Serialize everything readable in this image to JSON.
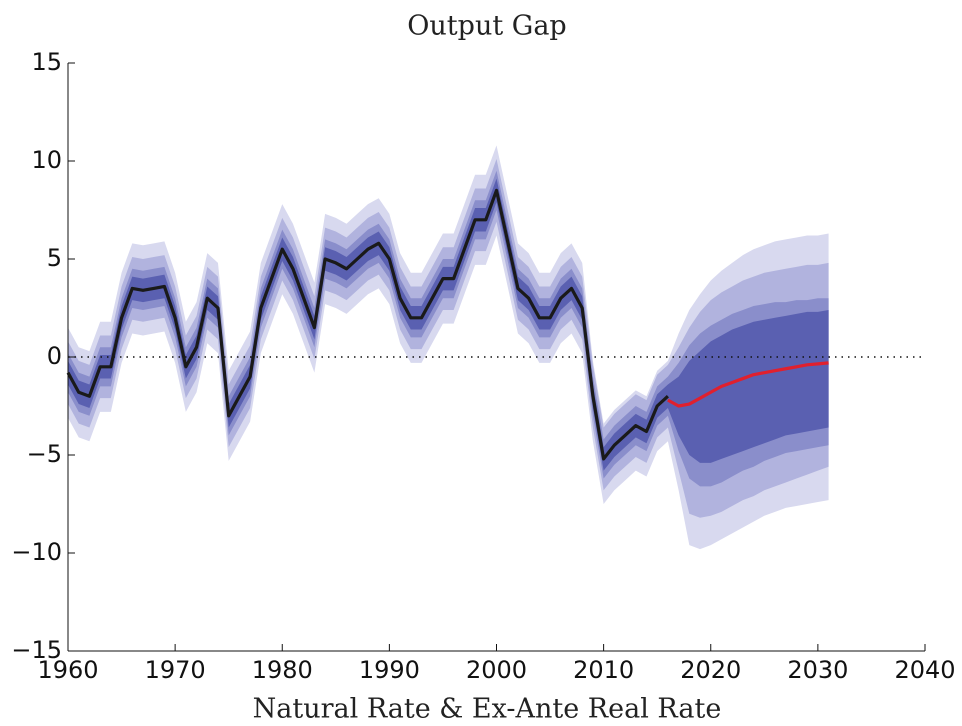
{
  "chart_data": {
    "type": "fan",
    "title": "Output Gap",
    "xlabel": "Natural Rate & Ex-Ante Real Rate",
    "x": [
      1960,
      1961,
      1962,
      1963,
      1964,
      1965,
      1966,
      1967,
      1968,
      1969,
      1970,
      1971,
      1972,
      1973,
      1974,
      1975,
      1976,
      1977,
      1978,
      1979,
      1980,
      1981,
      1982,
      1983,
      1984,
      1985,
      1986,
      1987,
      1988,
      1989,
      1990,
      1991,
      1992,
      1993,
      1994,
      1995,
      1996,
      1997,
      1998,
      1999,
      2000,
      2001,
      2002,
      2003,
      2004,
      2005,
      2006,
      2007,
      2008,
      2009,
      2010,
      2011,
      2012,
      2013,
      2014,
      2015,
      2016,
      2017,
      2018,
      2019,
      2020,
      2021,
      2022,
      2023,
      2024,
      2025,
      2026,
      2027,
      2028,
      2029,
      2030,
      2031
    ],
    "bands": [
      {
        "color": "#d8d9ef",
        "lower": [
          -3.1,
          -4.1,
          -4.3,
          -2.8,
          -2.8,
          -0.3,
          1.2,
          1.1,
          1.2,
          1.3,
          -0.3,
          -2.8,
          -1.8,
          0.7,
          0.2,
          -5.3,
          -4.3,
          -3.3,
          0.2,
          1.7,
          3.2,
          2.2,
          0.7,
          -0.8,
          2.7,
          2.5,
          2.2,
          2.7,
          3.2,
          3.5,
          2.7,
          0.7,
          -0.3,
          -0.3,
          0.7,
          1.7,
          1.7,
          3.2,
          4.7,
          4.7,
          6.2,
          3.7,
          1.2,
          0.7,
          -0.3,
          -0.3,
          0.7,
          1.2,
          0.2,
          -4.3,
          -7.5,
          -6.8,
          -6.3,
          -5.8,
          -6.1,
          -4.8,
          -4.3,
          -6.8,
          -9.6,
          -9.8,
          -9.6,
          -9.3,
          -9.0,
          -8.7,
          -8.4,
          -8.1,
          -7.9,
          -7.7,
          -7.6,
          -7.5,
          -7.4,
          -7.3
        ],
        "upper": [
          1.5,
          0.5,
          0.3,
          1.8,
          1.8,
          4.3,
          5.8,
          5.7,
          5.8,
          5.9,
          4.3,
          1.8,
          2.8,
          5.3,
          4.8,
          -0.7,
          0.3,
          1.3,
          4.8,
          6.3,
          7.8,
          6.8,
          5.3,
          3.8,
          7.3,
          7.1,
          6.8,
          7.3,
          7.8,
          8.1,
          7.3,
          5.3,
          4.3,
          4.3,
          5.3,
          6.3,
          6.3,
          7.8,
          9.3,
          9.3,
          10.8,
          8.3,
          5.8,
          5.3,
          4.3,
          4.3,
          5.3,
          5.8,
          4.8,
          -0.2,
          -3.4,
          -2.7,
          -2.2,
          -1.7,
          -2.0,
          -0.7,
          -0.2,
          1.2,
          2.4,
          3.2,
          3.9,
          4.4,
          4.8,
          5.2,
          5.5,
          5.7,
          5.9,
          6.0,
          6.1,
          6.2,
          6.2,
          6.3
        ]
      },
      {
        "color": "#b1b3de",
        "lower": [
          -2.4,
          -3.4,
          -3.6,
          -2.1,
          -2.1,
          0.4,
          1.9,
          1.8,
          1.9,
          2.0,
          0.4,
          -2.1,
          -1.1,
          1.4,
          0.9,
          -4.6,
          -3.6,
          -2.6,
          0.9,
          2.4,
          3.9,
          2.9,
          1.4,
          -0.1,
          3.4,
          3.2,
          2.9,
          3.4,
          3.9,
          4.2,
          3.4,
          1.4,
          0.4,
          0.4,
          1.4,
          2.4,
          2.4,
          3.9,
          5.4,
          5.4,
          6.9,
          4.4,
          1.9,
          1.4,
          0.4,
          0.4,
          1.4,
          1.9,
          0.9,
          -3.6,
          -6.8,
          -6.1,
          -5.6,
          -5.1,
          -5.4,
          -4.1,
          -3.6,
          -5.8,
          -8.0,
          -8.2,
          -8.1,
          -7.9,
          -7.6,
          -7.3,
          -7.1,
          -6.8,
          -6.6,
          -6.4,
          -6.2,
          -6.0,
          -5.8,
          -5.6
        ],
        "upper": [
          0.8,
          -0.2,
          -0.4,
          1.1,
          1.1,
          3.6,
          5.1,
          5.0,
          5.1,
          5.2,
          3.6,
          1.1,
          2.1,
          4.6,
          4.1,
          -1.4,
          -0.4,
          0.6,
          4.1,
          5.6,
          7.1,
          6.1,
          4.6,
          3.1,
          6.6,
          6.4,
          6.1,
          6.6,
          7.1,
          7.4,
          6.6,
          4.6,
          3.6,
          3.6,
          4.6,
          5.6,
          5.6,
          7.1,
          8.6,
          8.6,
          10.1,
          7.6,
          5.1,
          4.6,
          3.6,
          3.6,
          4.6,
          5.1,
          4.1,
          -0.4,
          -3.6,
          -2.9,
          -2.4,
          -1.9,
          -2.2,
          -0.9,
          -0.4,
          0.5,
          1.5,
          2.3,
          2.9,
          3.3,
          3.6,
          3.9,
          4.1,
          4.3,
          4.4,
          4.5,
          4.6,
          4.7,
          4.7,
          4.8
        ]
      },
      {
        "color": "#8a8ecb",
        "lower": [
          -1.8,
          -2.8,
          -3.0,
          -1.5,
          -1.5,
          1.0,
          2.5,
          2.4,
          2.5,
          2.6,
          1.0,
          -1.5,
          -0.5,
          2.0,
          1.5,
          -4.0,
          -3.0,
          -2.0,
          1.5,
          3.0,
          4.5,
          3.5,
          2.0,
          0.5,
          4.0,
          3.8,
          3.5,
          4.0,
          4.5,
          4.8,
          4.0,
          2.0,
          1.0,
          1.0,
          2.0,
          3.0,
          3.0,
          4.5,
          6.0,
          6.0,
          7.5,
          5.0,
          2.5,
          2.0,
          1.0,
          1.0,
          2.0,
          2.5,
          1.5,
          -3.0,
          -6.2,
          -5.5,
          -5.0,
          -4.5,
          -4.8,
          -3.5,
          -3.0,
          -4.8,
          -6.2,
          -6.6,
          -6.6,
          -6.4,
          -6.1,
          -5.8,
          -5.6,
          -5.3,
          -5.1,
          -4.9,
          -4.8,
          -4.7,
          -4.6,
          -4.5
        ],
        "upper": [
          0.2,
          -0.8,
          -1.0,
          0.5,
          0.5,
          3.0,
          4.5,
          4.4,
          4.5,
          4.6,
          3.0,
          0.5,
          1.5,
          4.0,
          3.5,
          -2.0,
          -1.0,
          0.0,
          3.5,
          5.0,
          6.5,
          5.5,
          4.0,
          2.5,
          6.0,
          5.8,
          5.5,
          6.0,
          6.5,
          6.8,
          6.0,
          4.0,
          3.0,
          3.0,
          4.0,
          5.0,
          5.0,
          6.5,
          8.0,
          8.0,
          9.5,
          7.0,
          4.5,
          4.0,
          3.0,
          3.0,
          4.0,
          4.5,
          3.5,
          -1.0,
          -4.2,
          -3.5,
          -3.0,
          -2.5,
          -2.8,
          -1.5,
          -1.0,
          -0.3,
          0.6,
          1.2,
          1.6,
          1.9,
          2.2,
          2.4,
          2.6,
          2.7,
          2.8,
          2.8,
          2.9,
          2.9,
          3.0,
          3.0
        ]
      },
      {
        "color": "#5a60b1",
        "lower": [
          -1.4,
          -2.4,
          -2.6,
          -1.1,
          -1.1,
          1.4,
          2.9,
          2.8,
          2.9,
          3.0,
          1.4,
          -1.1,
          -0.1,
          2.4,
          1.9,
          -3.6,
          -2.6,
          -1.6,
          1.9,
          3.4,
          4.9,
          3.9,
          2.4,
          0.9,
          4.4,
          4.2,
          3.9,
          4.4,
          4.9,
          5.2,
          4.4,
          2.4,
          1.4,
          1.4,
          2.4,
          3.4,
          3.4,
          4.9,
          6.4,
          6.4,
          7.9,
          5.4,
          2.9,
          2.4,
          1.4,
          1.4,
          2.4,
          2.9,
          1.9,
          -2.6,
          -5.8,
          -5.1,
          -4.6,
          -4.1,
          -4.4,
          -3.1,
          -2.6,
          -4.0,
          -5.0,
          -5.4,
          -5.4,
          -5.2,
          -5.0,
          -4.8,
          -4.6,
          -4.4,
          -4.2,
          -4.0,
          -3.9,
          -3.8,
          -3.7,
          -3.6
        ],
        "upper": [
          -0.2,
          -1.2,
          -1.4,
          0.1,
          0.1,
          2.6,
          4.1,
          4.0,
          4.1,
          4.2,
          2.6,
          0.1,
          1.1,
          3.6,
          3.1,
          -2.4,
          -1.4,
          -0.4,
          3.1,
          4.6,
          6.1,
          5.1,
          3.6,
          2.1,
          5.6,
          5.4,
          5.1,
          5.6,
          6.1,
          6.4,
          5.6,
          3.6,
          2.6,
          2.6,
          3.6,
          4.6,
          4.6,
          6.1,
          7.6,
          7.6,
          9.1,
          6.6,
          4.1,
          3.6,
          2.6,
          2.6,
          3.6,
          4.1,
          3.1,
          -1.4,
          -4.6,
          -3.9,
          -3.4,
          -2.9,
          -3.2,
          -1.9,
          -1.4,
          -1.0,
          -0.2,
          0.3,
          0.8,
          1.1,
          1.4,
          1.6,
          1.8,
          1.9,
          2.0,
          2.1,
          2.2,
          2.3,
          2.3,
          2.4
        ]
      }
    ],
    "series": [
      {
        "color": "#1a1a1a",
        "values": [
          -0.8,
          -1.8,
          -2.0,
          -0.5,
          -0.5,
          2.0,
          3.5,
          3.4,
          3.5,
          3.6,
          2.0,
          -0.5,
          0.5,
          3.0,
          2.5,
          -3.0,
          -2.0,
          -1.0,
          2.5,
          4.0,
          5.5,
          4.5,
          3.0,
          1.5,
          5.0,
          4.8,
          4.5,
          5.0,
          5.5,
          5.8,
          5.0,
          3.0,
          2.0,
          2.0,
          3.0,
          4.0,
          4.0,
          5.5,
          7.0,
          7.0,
          8.5,
          6.0,
          3.5,
          3.0,
          2.0,
          2.0,
          3.0,
          3.5,
          2.5,
          -2.0,
          -5.2,
          -4.5,
          -4.0,
          -3.5,
          -3.8,
          -2.5,
          -2.0,
          null,
          null,
          null,
          null,
          null,
          null,
          null,
          null,
          null,
          null,
          null,
          null,
          null,
          null,
          null
        ]
      },
      {
        "color": "#e0202e",
        "values": [
          null,
          null,
          null,
          null,
          null,
          null,
          null,
          null,
          null,
          null,
          null,
          null,
          null,
          null,
          null,
          null,
          null,
          null,
          null,
          null,
          null,
          null,
          null,
          null,
          null,
          null,
          null,
          null,
          null,
          null,
          null,
          null,
          null,
          null,
          null,
          null,
          null,
          null,
          null,
          null,
          null,
          null,
          null,
          null,
          null,
          null,
          null,
          null,
          null,
          null,
          null,
          null,
          null,
          null,
          null,
          null,
          -2.2,
          -2.5,
          -2.4,
          -2.1,
          -1.8,
          -1.5,
          -1.3,
          -1.1,
          -0.9,
          -0.8,
          -0.7,
          -0.6,
          -0.5,
          -0.4,
          -0.35,
          -0.3
        ]
      }
    ],
    "hline": 0,
    "xlim": [
      1960,
      2040
    ],
    "xticks": [
      1960,
      1970,
      1980,
      1990,
      2000,
      2010,
      2020,
      2030,
      2040
    ],
    "ylim": [
      -15,
      15
    ],
    "yticks": [
      {
        "value": -15,
        "label": "−15"
      },
      {
        "value": -10,
        "label": "−10"
      },
      {
        "value": -5,
        "label": "−5"
      },
      0,
      5,
      10,
      15
    ]
  }
}
